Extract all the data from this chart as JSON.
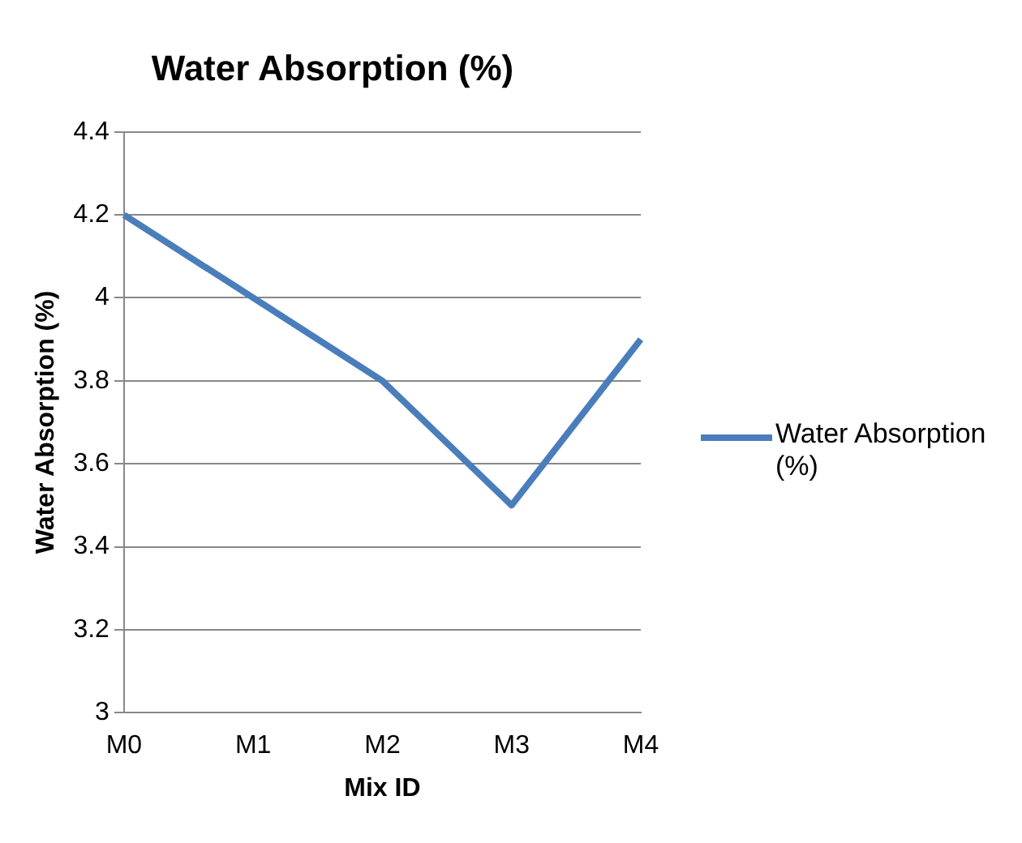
{
  "chart_data": {
    "type": "line",
    "title": "Water Absorption (%)",
    "xlabel": "Mix ID",
    "ylabel": "Water Absorption (%)",
    "categories": [
      "M0",
      "M1",
      "M2",
      "M3",
      "M4"
    ],
    "series": [
      {
        "name": "Water Absorption (%)",
        "color": "#4a7ebb",
        "values": [
          4.2,
          4.0,
          3.8,
          3.5,
          3.9
        ]
      }
    ],
    "ylim": [
      3,
      4.4
    ],
    "yticks": [
      {
        "value": 3,
        "label": "3"
      },
      {
        "value": 3.2,
        "label": "3.2"
      },
      {
        "value": 3.4,
        "label": "3.4"
      },
      {
        "value": 3.6,
        "label": "3.6"
      },
      {
        "value": 3.8,
        "label": "3.8"
      },
      {
        "value": 4,
        "label": "4"
      },
      {
        "value": 4.2,
        "label": "4.2"
      },
      {
        "value": 4.4,
        "label": "4.4"
      }
    ],
    "grid": "y",
    "legend": "right",
    "marker": "none",
    "line_style": "solid"
  }
}
